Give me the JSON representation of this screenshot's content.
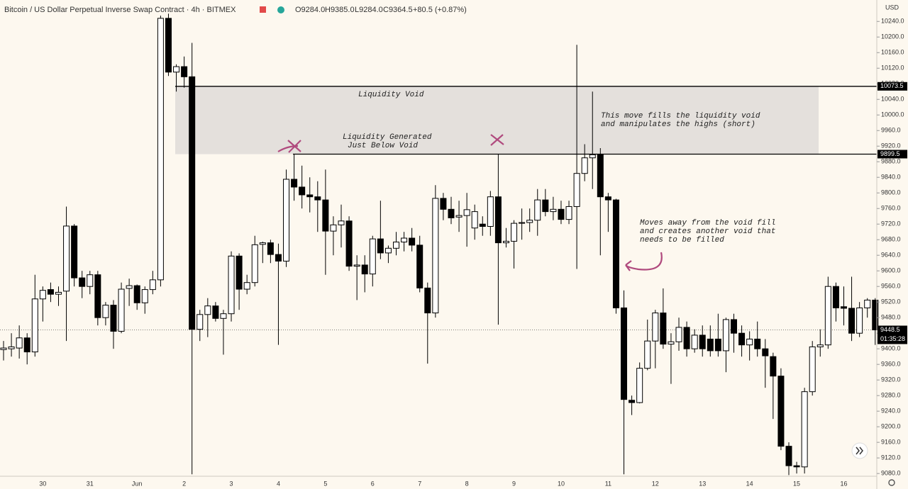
{
  "chart_data": {
    "type": "candlestick",
    "title": "Bitcoin / US Dollar Perpetual Inverse Swap Contract · 4h · BITMEX",
    "legend_values": [
      "O9284.0",
      "H9385.0",
      "L9284.0",
      "C9364.5",
      "+80.5 (+0.87%)"
    ],
    "currency": "USD",
    "categories": [
      null,
      null,
      null,
      null,
      null,
      "30",
      null,
      null,
      null,
      null,
      null,
      "31",
      null,
      null,
      null,
      null,
      null,
      "Jun",
      null,
      null,
      null,
      null,
      null,
      "2",
      null,
      null,
      null,
      null,
      null,
      "3",
      null,
      null,
      null,
      null,
      null,
      "4",
      null,
      null,
      null,
      null,
      null,
      "5",
      null,
      null,
      null,
      null,
      null,
      "6",
      null,
      null,
      null,
      null,
      null,
      "7",
      null,
      null,
      null,
      null,
      null,
      "8",
      null,
      null,
      null,
      null,
      null,
      "9",
      null,
      null,
      null,
      null,
      null,
      "10",
      null,
      null,
      null,
      null,
      null,
      "11",
      null,
      null,
      null,
      null,
      null,
      "12",
      null,
      null,
      null,
      null,
      null,
      "13",
      null,
      null,
      null,
      null,
      null,
      "14",
      null,
      null,
      null,
      null,
      null,
      "15",
      null,
      null,
      null,
      null,
      null,
      "16",
      null,
      null,
      null,
      null
    ],
    "ohlc": [
      [
        9398,
        9420,
        9370,
        9402
      ],
      [
        9400,
        9440,
        9380,
        9405
      ],
      [
        9402,
        9460,
        9375,
        9428
      ],
      [
        9428,
        9440,
        9360,
        9392
      ],
      [
        9392,
        9590,
        9380,
        9528
      ],
      [
        9528,
        9560,
        9470,
        9550
      ],
      [
        9552,
        9570,
        9520,
        9540
      ],
      [
        9540,
        9560,
        9510,
        9545
      ],
      [
        9548,
        9765,
        9420,
        9715
      ],
      [
        9715,
        9720,
        9560,
        9582
      ],
      [
        9582,
        9600,
        9530,
        9560
      ],
      [
        9560,
        9600,
        9540,
        9590
      ],
      [
        9590,
        9600,
        9460,
        9480
      ],
      [
        9480,
        9520,
        9460,
        9512
      ],
      [
        9512,
        9525,
        9400,
        9445
      ],
      [
        9445,
        9570,
        9440,
        9553
      ],
      [
        9555,
        9580,
        9510,
        9562
      ],
      [
        9562,
        9565,
        9500,
        9518
      ],
      [
        9518,
        9560,
        9490,
        9552
      ],
      [
        9552,
        9600,
        9540,
        9577
      ],
      [
        9577,
        10255,
        9560,
        10248
      ],
      [
        10248,
        10260,
        10100,
        10110
      ],
      [
        10110,
        10130,
        10060,
        10124
      ],
      [
        10124,
        10150,
        10070,
        10098
      ],
      [
        10098,
        10185,
        9078,
        9450
      ],
      [
        9450,
        9500,
        9420,
        9488
      ],
      [
        9488,
        9530,
        9430,
        9510
      ],
      [
        9510,
        9520,
        9470,
        9478
      ],
      [
        9478,
        9500,
        9385,
        9490
      ],
      [
        9490,
        9650,
        9470,
        9638
      ],
      [
        9638,
        9645,
        9500,
        9553
      ],
      [
        9553,
        9590,
        9540,
        9570
      ],
      [
        9570,
        9690,
        9560,
        9667
      ],
      [
        9668,
        9675,
        9620,
        9672
      ],
      [
        9672,
        9680,
        9620,
        9642
      ],
      [
        9642,
        9670,
        9410,
        9625
      ],
      [
        9625,
        9860,
        9610,
        9835
      ],
      [
        9835,
        9900,
        9780,
        9815
      ],
      [
        9815,
        9870,
        9760,
        9795
      ],
      [
        9795,
        9840,
        9750,
        9790
      ],
      [
        9790,
        9830,
        9700,
        9782
      ],
      [
        9782,
        9860,
        9590,
        9702
      ],
      [
        9702,
        9740,
        9640,
        9718
      ],
      [
        9718,
        9770,
        9660,
        9728
      ],
      [
        9728,
        9740,
        9600,
        9612
      ],
      [
        9612,
        9640,
        9525,
        9615
      ],
      [
        9615,
        9640,
        9545,
        9592
      ],
      [
        9592,
        9690,
        9560,
        9682
      ],
      [
        9682,
        9780,
        9630,
        9646
      ],
      [
        9646,
        9665,
        9620,
        9658
      ],
      [
        9658,
        9700,
        9640,
        9674
      ],
      [
        9674,
        9700,
        9650,
        9684
      ],
      [
        9684,
        9710,
        9650,
        9666
      ],
      [
        9666,
        9690,
        9545,
        9556
      ],
      [
        9556,
        9570,
        9362,
        9492
      ],
      [
        9492,
        9820,
        9480,
        9786
      ],
      [
        9786,
        9800,
        9730,
        9758
      ],
      [
        9758,
        9790,
        9720,
        9736
      ],
      [
        9738,
        9780,
        9700,
        9742
      ],
      [
        9742,
        9800,
        9662,
        9757
      ],
      [
        9710,
        9770,
        9680,
        9752
      ],
      [
        9720,
        9740,
        9690,
        9714
      ],
      [
        9714,
        9805,
        9690,
        9790
      ],
      [
        9790,
        9900,
        9462,
        9672
      ],
      [
        9672,
        9710,
        9660,
        9676
      ],
      [
        9676,
        9730,
        9606,
        9722
      ],
      [
        9722,
        9760,
        9680,
        9724
      ],
      [
        9724,
        9760,
        9700,
        9730
      ],
      [
        9730,
        9810,
        9690,
        9782
      ],
      [
        9782,
        9810,
        9740,
        9752
      ],
      [
        9752,
        9790,
        9730,
        9758
      ],
      [
        9758,
        9780,
        9720,
        9732
      ],
      [
        9732,
        9780,
        9720,
        9765
      ],
      [
        9765,
        10180,
        9605,
        9850
      ],
      [
        9850,
        9925,
        9830,
        9890
      ],
      [
        9890,
        10060,
        9810,
        9898
      ],
      [
        9898,
        9915,
        9640,
        9790
      ],
      [
        9790,
        9800,
        9700,
        9782
      ],
      [
        9782,
        9785,
        9490,
        9505
      ],
      [
        9505,
        9550,
        9078,
        9270
      ],
      [
        9268,
        9280,
        9230,
        9262
      ],
      [
        9262,
        9365,
        9260,
        9350
      ],
      [
        9350,
        9475,
        9345,
        9420
      ],
      [
        9420,
        9500,
        9350,
        9492
      ],
      [
        9492,
        9555,
        9400,
        9412
      ],
      [
        9412,
        9440,
        9310,
        9418
      ],
      [
        9418,
        9480,
        9395,
        9455
      ],
      [
        9455,
        9470,
        9380,
        9400
      ],
      [
        9400,
        9450,
        9390,
        9435
      ],
      [
        9435,
        9460,
        9380,
        9400
      ],
      [
        9425,
        9460,
        9380,
        9395
      ],
      [
        9425,
        9490,
        9380,
        9395
      ],
      [
        9395,
        9480,
        9340,
        9475
      ],
      [
        9475,
        9490,
        9390,
        9440
      ],
      [
        9440,
        9460,
        9380,
        9410
      ],
      [
        9410,
        9445,
        9370,
        9425
      ],
      [
        9425,
        9470,
        9380,
        9400
      ],
      [
        9400,
        9425,
        9300,
        9382
      ],
      [
        9380,
        9390,
        9220,
        9330
      ],
      [
        9330,
        9350,
        9140,
        9150
      ],
      [
        9150,
        9160,
        9076,
        9100
      ],
      [
        9100,
        9110,
        9080,
        9097
      ],
      [
        9097,
        9300,
        9080,
        9290
      ],
      [
        9290,
        9420,
        9280,
        9405
      ],
      [
        9405,
        9450,
        9380,
        9410
      ],
      [
        9410,
        9585,
        9400,
        9560
      ],
      [
        9560,
        9570,
        9470,
        9505
      ],
      [
        9508,
        9560,
        9460,
        9504
      ],
      [
        9504,
        9585,
        9420,
        9440
      ],
      [
        9440,
        9520,
        9430,
        9505
      ],
      [
        9505,
        9530,
        9480,
        9525
      ],
      [
        9525,
        9530,
        9410,
        9448.5
      ]
    ],
    "up_color": "#ffffff",
    "down_color": "#000000",
    "ylim": [
      9073,
      10295
    ],
    "yticks": [
      {
        "value": 9080,
        "label": "9080.0"
      },
      {
        "value": 9120,
        "label": "9120.0"
      },
      {
        "value": 9160,
        "label": "9160.0"
      },
      {
        "value": 9200,
        "label": "9200.0"
      },
      {
        "value": 9240,
        "label": "9240.0"
      },
      {
        "value": 9280,
        "label": "9280.0"
      },
      {
        "value": 9320,
        "label": "9320.0"
      },
      {
        "value": 9360,
        "label": "9360.0"
      },
      {
        "value": 9400,
        "label": "9400.0"
      },
      {
        "value": 9440,
        "label": "9440.0"
      },
      {
        "value": 9480,
        "label": "9480.0"
      },
      {
        "value": 9520,
        "label": "9520.0"
      },
      {
        "value": 9560,
        "label": "9560.0"
      },
      {
        "value": 9600,
        "label": "9600.0"
      },
      {
        "value": 9640,
        "label": "9640.0"
      },
      {
        "value": 9680,
        "label": "9680.0"
      },
      {
        "value": 9720,
        "label": "9720.0"
      },
      {
        "value": 9760,
        "label": "9760.0"
      },
      {
        "value": 9800,
        "label": "9800.0"
      },
      {
        "value": 9840,
        "label": "9840.0"
      },
      {
        "value": 9880,
        "label": "9880.0"
      },
      {
        "value": 9920,
        "label": "9920.0"
      },
      {
        "value": 9960,
        "label": "9960.0"
      },
      {
        "value": 10000,
        "label": "10000.0"
      },
      {
        "value": 10040,
        "label": "10040.0"
      },
      {
        "value": 10080,
        "label": "10080.0"
      },
      {
        "value": 10120,
        "label": "10120.0"
      },
      {
        "value": 10160,
        "label": "10160.0"
      },
      {
        "value": 10200,
        "label": "10200.0"
      },
      {
        "value": 10240,
        "label": "10240.0"
      }
    ],
    "grid": false,
    "horizontal_lines": [
      10073.5,
      9899.5
    ],
    "last_price": 9448.5,
    "countdown": "01:35:28",
    "annotations": {
      "void": "Liquidity Void",
      "generated": [
        "Liquidity Generated",
        "Just Below Void"
      ],
      "fill": [
        "This move fills the liquidity void",
        "and manipulates the highs (short)"
      ],
      "away": [
        "Moves away from the void fill",
        "and creates another void that",
        "needs to be filled"
      ]
    }
  }
}
